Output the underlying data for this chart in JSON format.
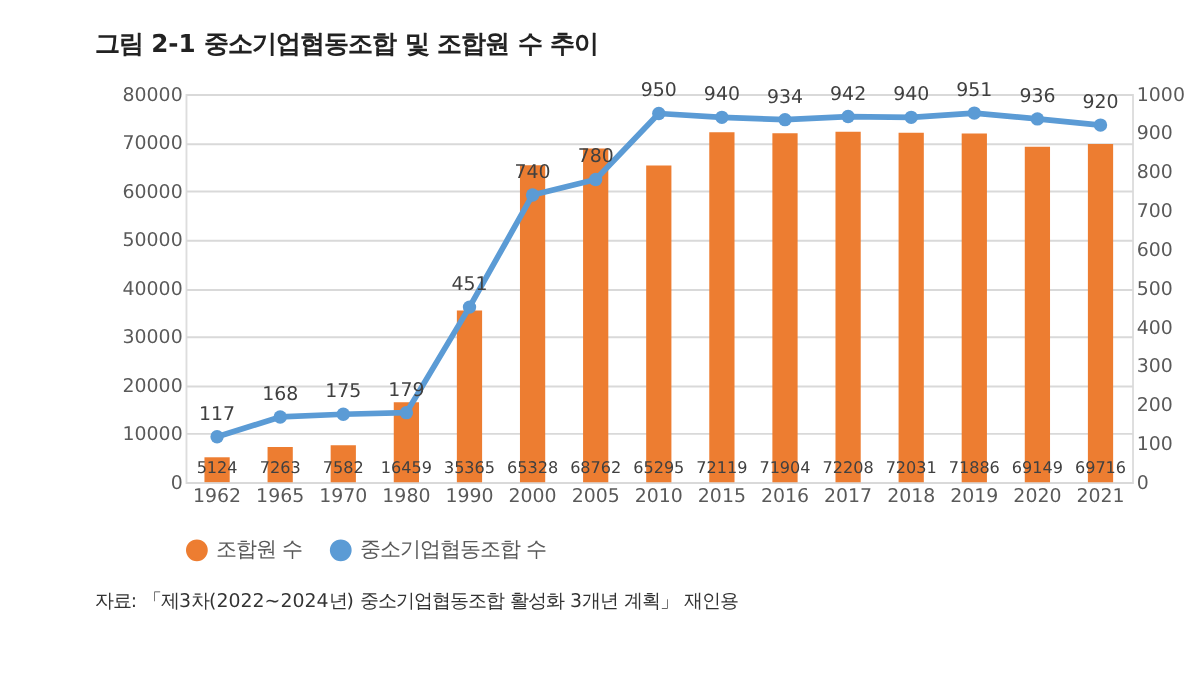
{
  "chart_data": {
    "type": "bar",
    "title": "그림 2-1  중소기업협동조합 및 조합원 수 추이",
    "categories": [
      "1962",
      "1965",
      "1970",
      "1980",
      "1990",
      "2000",
      "2005",
      "2010",
      "2015",
      "2016",
      "2017",
      "2018",
      "2019",
      "2020",
      "2021"
    ],
    "series": [
      {
        "name": "조합원 수",
        "axis": "y",
        "color": "#ed7d31",
        "values": [
          5124,
          7263,
          7582,
          16459,
          35365,
          65328,
          68762,
          65295,
          72119,
          71904,
          72208,
          72031,
          71886,
          69149,
          69716
        ]
      },
      {
        "name": "중소기업협동조합 수",
        "type": "line",
        "axis": "y2",
        "color": "#5b9bd5",
        "marker": "circle",
        "values": [
          117,
          168,
          175,
          179,
          451,
          740,
          780,
          950,
          940,
          934,
          942,
          940,
          951,
          936,
          920
        ]
      }
    ],
    "ylim": [
      0,
      80000
    ],
    "yticks": [
      0,
      10000,
      20000,
      30000,
      40000,
      50000,
      60000,
      70000,
      80000
    ],
    "y2lim": [
      0,
      1000
    ],
    "y2ticks": [
      0,
      100,
      200,
      300,
      400,
      500,
      600,
      700,
      800,
      900,
      1000
    ],
    "grid": "y",
    "legend": "bottom",
    "data_labels": true,
    "annotations": [
      "자료: 「제3차(2022~2024년) 중소기업협동조합 활성화 3개년 계획」 재인용"
    ]
  }
}
